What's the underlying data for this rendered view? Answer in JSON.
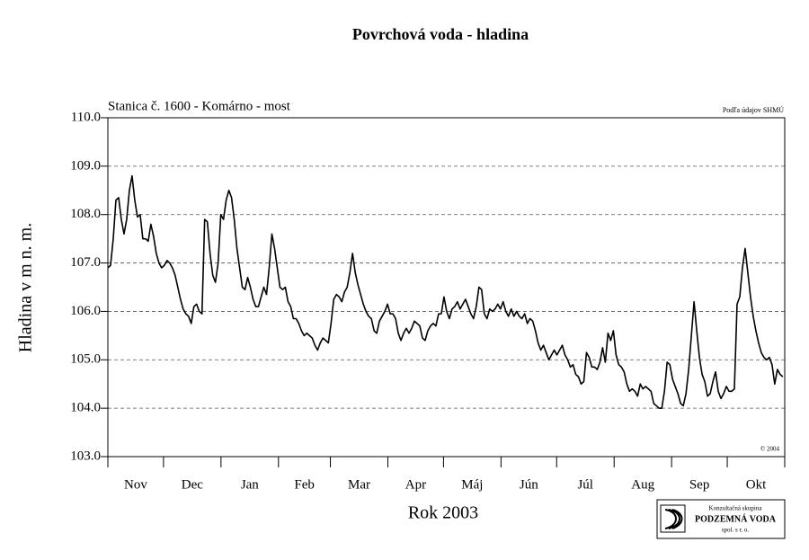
{
  "chart_data": {
    "type": "line",
    "title": "Povrchová voda - hladina",
    "subtitle": "Stanica č. 1600 - Komárno - most",
    "source": "Podľa údajov SHMÚ",
    "copyright": "© 2004",
    "ylabel": "Hladina v m n. m.",
    "xlabel": "Rok 2003",
    "categories": [
      "Nov",
      "Dec",
      "Jan",
      "Feb",
      "Mar",
      "Apr",
      "Máj",
      "Jún",
      "Júl",
      "Aug",
      "Sep",
      "Okt"
    ],
    "xlim": [
      0,
      365
    ],
    "xticks": [
      0,
      30,
      61,
      92,
      120,
      151,
      181,
      212,
      242,
      273,
      304,
      334,
      365
    ],
    "ylim": [
      103,
      110
    ],
    "yticks": [
      {
        "value": 103,
        "label": "103.0"
      },
      {
        "value": 104,
        "label": "104.0"
      },
      {
        "value": 105,
        "label": "105.0"
      },
      {
        "value": 106,
        "label": "106.0"
      },
      {
        "value": 107,
        "label": "107.0"
      },
      {
        "value": 108,
        "label": "108.0"
      },
      {
        "value": 109,
        "label": "109.0"
      },
      {
        "value": 110,
        "label": "110.0"
      }
    ],
    "grid": true,
    "color": "#000000",
    "x": [
      0,
      1.45,
      2.9,
      4.35,
      5.8,
      7.25,
      8.7,
      10.15,
      11.6,
      13.05,
      14.5,
      15.95,
      17.4,
      18.85,
      20.3,
      21.75,
      23.2,
      24.65,
      26.1,
      27.55,
      29,
      30.45,
      31.9,
      33.35,
      34.8,
      36.25,
      37.7,
      39.15,
      40.6,
      42.05,
      43.5,
      44.95,
      46.4,
      47.85,
      49.3,
      50.75,
      52.2,
      53.65,
      55.1,
      56.55,
      58,
      59.45,
      60.9,
      62.35,
      63.8,
      65.25,
      66.7,
      68.15,
      69.6,
      71.05,
      72.5,
      73.95,
      75.4,
      76.85,
      78.3,
      79.75,
      81.2,
      82.65,
      84.1,
      85.55,
      87,
      88.45,
      89.9,
      91.35,
      92.8,
      94.25,
      95.7,
      97.15,
      98.6,
      100.05,
      101.5,
      102.95,
      104.4,
      105.85,
      107.3,
      108.75,
      110.2,
      111.65,
      113.1,
      114.55,
      116,
      117.45,
      118.9,
      120.35,
      121.8,
      123.25,
      124.7,
      126.15,
      127.6,
      129.05,
      130.5,
      131.95,
      133.4,
      134.85,
      136.3,
      137.75,
      139.2,
      140.65,
      142.1,
      143.55,
      145,
      146.45,
      147.9,
      149.35,
      150.8,
      152.25,
      153.7,
      155.15,
      156.6,
      158.05,
      159.5,
      160.95,
      162.4,
      163.85,
      165.3,
      166.75,
      168.2,
      169.65,
      171.1,
      172.55,
      174,
      175.45,
      176.9,
      178.35,
      179.8,
      181.25,
      182.7,
      184.15,
      185.6,
      187.05,
      188.5,
      189.95,
      191.4,
      192.85,
      194.3,
      195.75,
      197.2,
      198.65,
      200.1,
      201.55,
      203,
      204.45,
      205.9,
      207.35,
      208.8,
      210.25,
      211.7,
      213.15,
      214.6,
      216.05,
      217.5,
      218.95,
      220.4,
      221.85,
      223.3,
      224.75,
      226.2,
      227.65,
      229.1,
      230.55,
      232,
      233.45,
      234.9,
      236.35,
      237.8,
      239.25,
      240.7,
      242.15,
      243.6,
      245.05,
      246.5,
      247.95,
      249.4,
      250.85,
      252.3,
      253.75,
      255.2,
      256.65,
      258.1,
      259.55,
      261,
      262.45,
      263.9,
      265.35,
      266.8,
      268.25,
      269.7,
      271.15,
      272.6,
      274.05,
      275.5,
      276.95,
      278.4,
      279.85,
      281.3,
      282.75,
      284.2,
      285.65,
      287.1,
      288.55,
      290,
      291.45,
      292.9,
      294.35,
      295.8,
      297.25,
      298.7,
      300.15,
      301.6,
      303.05,
      304.5,
      305.95,
      307.4,
      308.85,
      310.3,
      311.75,
      313.2,
      314.65,
      316.1,
      317.55,
      319,
      320.45,
      321.9,
      323.35,
      324.8,
      326.25,
      327.7,
      329.15,
      330.6,
      332.05,
      333.5,
      334.95,
      336.4,
      337.85,
      339.3,
      340.75,
      342.2,
      343.65,
      345.1,
      346.55,
      348,
      349.45,
      350.9,
      352.35,
      353.8,
      355.25,
      356.7,
      358.15,
      359.6,
      361.05,
      362.5,
      363.95
    ],
    "values": [
      106.9,
      106.95,
      107.5,
      108.3,
      108.35,
      107.9,
      107.6,
      107.9,
      108.5,
      108.8,
      108.3,
      107.95,
      108.0,
      107.5,
      107.5,
      107.45,
      107.8,
      107.55,
      107.2,
      107.0,
      106.9,
      106.95,
      107.05,
      107.0,
      106.9,
      106.75,
      106.5,
      106.25,
      106.05,
      105.95,
      105.9,
      105.75,
      106.1,
      106.15,
      106.0,
      105.95,
      107.9,
      107.85,
      107.2,
      106.75,
      106.6,
      107.0,
      108.0,
      107.9,
      108.3,
      108.5,
      108.35,
      107.9,
      107.3,
      106.9,
      106.5,
      106.45,
      106.7,
      106.5,
      106.25,
      106.1,
      106.1,
      106.3,
      106.5,
      106.35,
      106.9,
      107.6,
      107.3,
      106.9,
      106.5,
      106.45,
      106.5,
      106.2,
      106.1,
      105.85,
      105.85,
      105.75,
      105.6,
      105.5,
      105.55,
      105.5,
      105.45,
      105.3,
      105.2,
      105.35,
      105.45,
      105.4,
      105.35,
      105.75,
      106.25,
      106.35,
      106.3,
      106.2,
      106.4,
      106.5,
      106.8,
      107.2,
      106.8,
      106.55,
      106.35,
      106.15,
      106.0,
      105.9,
      105.85,
      105.6,
      105.55,
      105.8,
      105.9,
      106.0,
      106.15,
      105.95,
      105.95,
      105.85,
      105.55,
      105.4,
      105.55,
      105.65,
      105.55,
      105.65,
      105.8,
      105.75,
      105.7,
      105.45,
      105.4,
      105.6,
      105.7,
      105.75,
      105.7,
      105.95,
      105.95,
      106.3,
      106.0,
      105.85,
      106.05,
      106.1,
      106.2,
      106.05,
      106.15,
      106.25,
      106.1,
      105.95,
      105.85,
      106.1,
      106.5,
      106.45,
      105.95,
      105.85,
      106.05,
      106.0,
      106.05,
      106.15,
      106.05,
      106.2,
      106.0,
      105.9,
      106.05,
      105.9,
      106.0,
      105.9,
      105.85,
      105.95,
      105.75,
      105.85,
      105.8,
      105.6,
      105.35,
      105.2,
      105.3,
      105.15,
      105.0,
      105.1,
      105.2,
      105.1,
      105.2,
      105.3,
      105.1,
      105.0,
      104.85,
      104.9,
      104.7,
      104.65,
      104.5,
      104.55,
      105.15,
      105.05,
      104.85,
      104.85,
      104.8,
      104.95,
      105.25,
      104.95,
      105.55,
      105.4,
      105.6,
      105.1,
      104.9,
      104.85,
      104.75,
      104.5,
      104.35,
      104.4,
      104.35,
      104.25,
      104.5,
      104.4,
      104.45,
      104.4,
      104.35,
      104.1,
      104.05,
      104.0,
      104.0,
      104.35,
      104.95,
      104.9,
      104.6,
      104.45,
      104.3,
      104.1,
      104.05,
      104.3,
      104.8,
      105.5,
      106.2,
      105.6,
      105.05,
      104.7,
      104.55,
      104.25,
      104.3,
      104.55,
      104.75,
      104.35,
      104.2,
      104.3,
      104.45,
      104.35,
      104.35,
      104.4,
      106.15,
      106.3,
      106.9,
      107.3,
      106.8,
      106.3,
      105.9,
      105.6,
      105.35,
      105.15,
      105.05,
      105.0,
      105.05,
      104.9,
      104.5,
      104.8,
      104.7,
      104.65
    ]
  },
  "logo": {
    "line1": "Konzultačná skupina",
    "line2": "PODZEMNÁ VODA",
    "line3": "spol. s r. o."
  }
}
